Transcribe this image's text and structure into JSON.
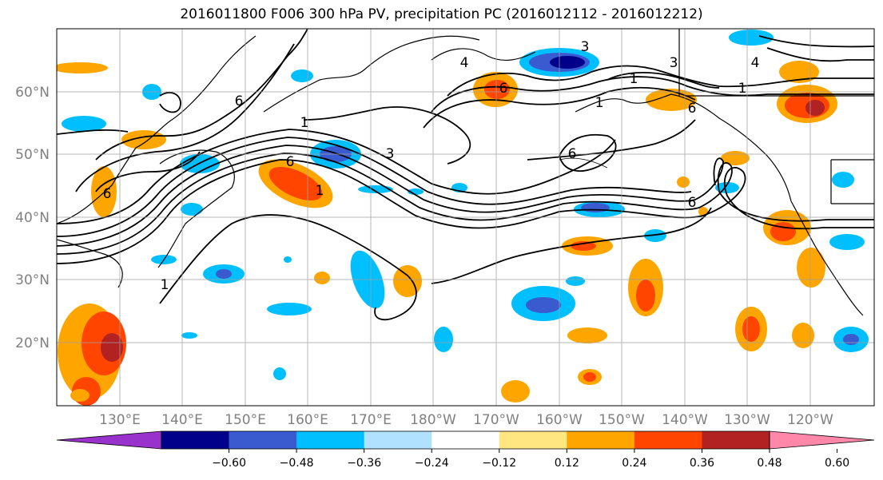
{
  "title": "2016011800 F006 300 hPa PV, precipitation PC (2016012112 - 2016012212)",
  "map": {
    "lat_labels": [
      "60°N",
      "50°N",
      "40°N",
      "30°N",
      "20°N"
    ],
    "lon_labels": [
      "130°E",
      "140°E",
      "150°E",
      "160°E",
      "170°E",
      "180°W",
      "170°W",
      "160°W",
      "150°W",
      "140°W",
      "130°W",
      "120°W"
    ],
    "contour_labels": [
      "6",
      "3",
      "4",
      "3",
      "1",
      "4",
      "1",
      "6",
      "1",
      "3",
      "6",
      "6",
      "6",
      "1",
      "6",
      "1",
      "6",
      "1"
    ]
  },
  "colorbar": {
    "colors": [
      "#9932cc",
      "#00008b",
      "#3a5bd0",
      "#00bfff",
      "#b0e2ff",
      "#ffffff",
      "#ffe680",
      "#ffa500",
      "#ff4500",
      "#b22222",
      "#ff88aa"
    ],
    "tick_labels": [
      "−0.60",
      "−0.48",
      "−0.36",
      "−0.24",
      "−0.12",
      "0.12",
      "0.24",
      "0.36",
      "0.48",
      "0.60"
    ]
  }
}
